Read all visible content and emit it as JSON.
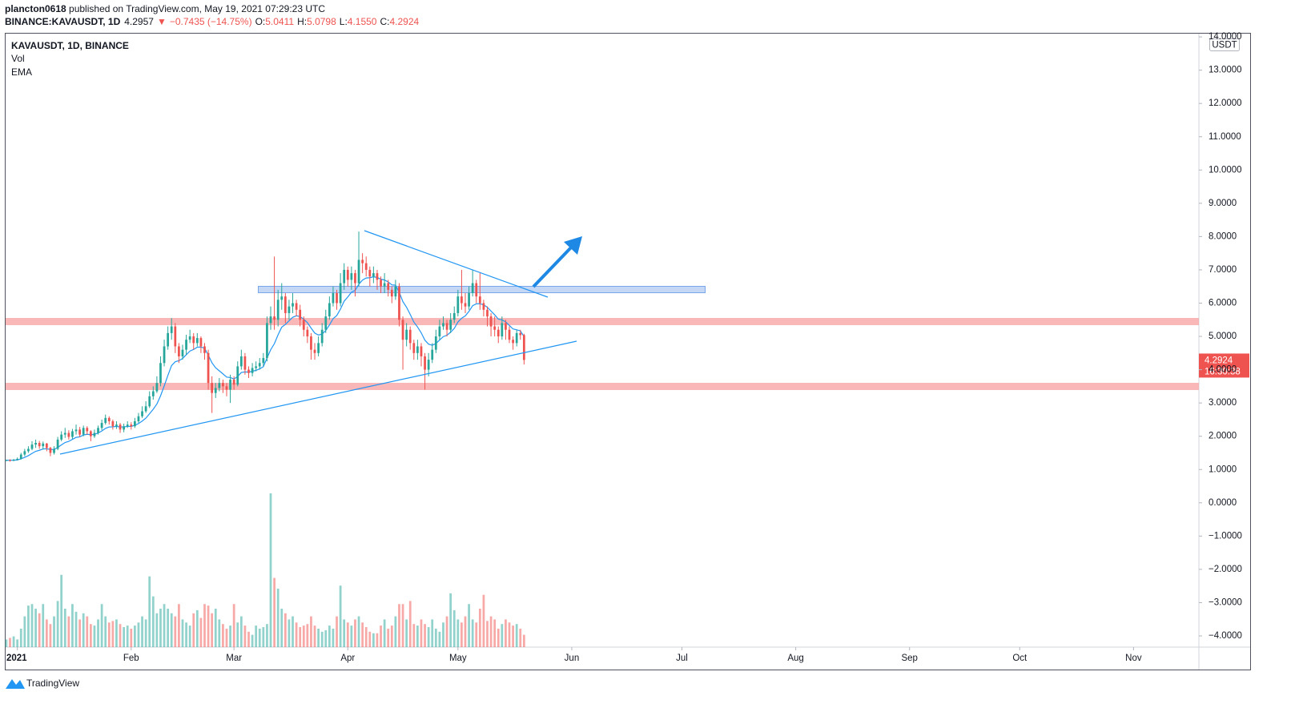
{
  "header": {
    "author": "plancton0618",
    "published": " published on TradingView.com, May 19, 2021 07:29:23 UTC",
    "symbol": "BINANCE:KAVAUSDT, 1D",
    "last": "4.2957",
    "arrow": "▼",
    "change": "−0.7435 (−14.75%)",
    "o_label": "O:",
    "o": "5.0411",
    "h_label": "H:",
    "h": "5.0798",
    "l_label": "L:",
    "l": "4.1550",
    "c_label": "C:",
    "c": "4.2924",
    "countdown": "16:30:38"
  },
  "legend": [
    "KAVAUSDT, 1D, BINANCE",
    "Vol",
    "EMA"
  ],
  "currency": "USDT",
  "footer": "TradingView",
  "chart_data": {
    "type": "candlestick",
    "up_color": "#26a69a",
    "down_color": "#ef5350",
    "ema_color": "#2196f3",
    "ylim": [
      14.05,
      -4.0
    ],
    "yticks": [
      {
        "value": 14,
        "label": "14.0000"
      },
      {
        "value": 13,
        "label": "13.0000"
      },
      {
        "value": 12,
        "label": "12.0000"
      },
      {
        "value": 11,
        "label": "11.0000"
      },
      {
        "value": 10,
        "label": "10.0000"
      },
      {
        "value": 9,
        "label": "9.0000"
      },
      {
        "value": 8,
        "label": "8.0000"
      },
      {
        "value": 7,
        "label": "7.0000"
      },
      {
        "value": 6,
        "label": "6.0000"
      },
      {
        "value": 5,
        "label": "5.0000"
      },
      {
        "value": 4,
        "label": "4.0000"
      },
      {
        "value": 3,
        "label": "3.0000"
      },
      {
        "value": 2,
        "label": "2.0000"
      },
      {
        "value": 1,
        "label": "1.0000"
      },
      {
        "value": 0,
        "label": "0.0000"
      },
      {
        "value": -1,
        "label": "−1.0000"
      },
      {
        "value": -2,
        "label": "−2.0000"
      },
      {
        "value": -3,
        "label": "−3.0000"
      },
      {
        "value": -4,
        "label": "−4.0000"
      }
    ],
    "xlim": [
      -0.2,
      324.8
    ],
    "xticks": [
      {
        "value": 3,
        "label": "2021"
      },
      {
        "value": 34,
        "label": "Feb"
      },
      {
        "value": 62,
        "label": "Mar"
      },
      {
        "value": 93,
        "label": "Apr"
      },
      {
        "value": 123,
        "label": "May"
      },
      {
        "value": 154,
        "label": "Jun"
      },
      {
        "value": 184,
        "label": "Jul"
      },
      {
        "value": 215,
        "label": "Aug"
      },
      {
        "value": 246,
        "label": "Sep"
      },
      {
        "value": 276,
        "label": "Oct"
      },
      {
        "value": 307,
        "label": "Nov"
      }
    ],
    "vlim": [
      0,
      100
    ],
    "candles": [
      [
        1.27,
        1.3,
        1.25,
        1.28
      ],
      [
        1.28,
        1.31,
        1.24,
        1.27
      ],
      [
        1.27,
        1.32,
        1.25,
        1.29
      ],
      [
        1.29,
        1.36,
        1.27,
        1.32
      ],
      [
        1.32,
        1.5,
        1.3,
        1.45
      ],
      [
        1.45,
        1.62,
        1.4,
        1.55
      ],
      [
        1.55,
        1.7,
        1.5,
        1.62
      ],
      [
        1.62,
        1.85,
        1.58,
        1.75
      ],
      [
        1.75,
        1.9,
        1.65,
        1.8
      ],
      [
        1.8,
        1.86,
        1.62,
        1.7
      ],
      [
        1.7,
        1.84,
        1.6,
        1.78
      ],
      [
        1.78,
        1.8,
        1.55,
        1.65
      ],
      [
        1.65,
        1.68,
        1.4,
        1.5
      ],
      [
        1.5,
        1.7,
        1.45,
        1.62
      ],
      [
        1.62,
        1.98,
        1.58,
        1.9
      ],
      [
        1.9,
        2.15,
        1.85,
        2.05
      ],
      [
        2.05,
        2.25,
        1.95,
        2.1
      ],
      [
        2.1,
        2.18,
        1.9,
        1.98
      ],
      [
        1.98,
        2.22,
        1.92,
        2.15
      ],
      [
        2.15,
        2.35,
        2.05,
        2.2
      ],
      [
        2.2,
        2.28,
        1.98,
        2.05
      ],
      [
        2.05,
        2.32,
        2.0,
        2.25
      ],
      [
        2.25,
        2.3,
        2.05,
        2.15
      ],
      [
        2.15,
        2.18,
        1.85,
        2.0
      ],
      [
        2.0,
        2.2,
        1.95,
        2.1
      ],
      [
        2.1,
        2.32,
        2.05,
        2.25
      ],
      [
        2.25,
        2.5,
        2.18,
        2.4
      ],
      [
        2.4,
        2.65,
        2.35,
        2.55
      ],
      [
        2.55,
        2.6,
        2.35,
        2.45
      ],
      [
        2.45,
        2.5,
        2.2,
        2.3
      ],
      [
        2.3,
        2.45,
        2.22,
        2.35
      ],
      [
        2.35,
        2.4,
        2.1,
        2.2
      ],
      [
        2.2,
        2.38,
        2.12,
        2.3
      ],
      [
        2.3,
        2.45,
        2.25,
        2.35
      ],
      [
        2.35,
        2.42,
        2.2,
        2.3
      ],
      [
        2.3,
        2.55,
        2.25,
        2.45
      ],
      [
        2.45,
        2.7,
        2.4,
        2.6
      ],
      [
        2.6,
        2.9,
        2.55,
        2.75
      ],
      [
        2.75,
        3.05,
        2.7,
        2.9
      ],
      [
        2.9,
        3.35,
        2.85,
        3.2
      ],
      [
        3.2,
        3.5,
        3.1,
        3.35
      ],
      [
        3.35,
        3.8,
        3.3,
        3.6
      ],
      [
        3.6,
        4.4,
        3.5,
        4.2
      ],
      [
        4.2,
        4.9,
        4.1,
        4.7
      ],
      [
        4.7,
        5.3,
        4.6,
        5.1
      ],
      [
        5.1,
        5.55,
        4.9,
        5.3
      ],
      [
        5.3,
        5.4,
        4.5,
        4.7
      ],
      [
        4.7,
        4.8,
        4.2,
        4.4
      ],
      [
        4.4,
        4.75,
        4.3,
        4.6
      ],
      [
        4.6,
        5.05,
        4.45,
        4.9
      ],
      [
        4.9,
        5.2,
        4.8,
        5.0
      ],
      [
        5.0,
        5.1,
        4.6,
        4.8
      ],
      [
        4.8,
        5.1,
        4.7,
        4.95
      ],
      [
        4.95,
        5.0,
        4.5,
        4.7
      ],
      [
        4.7,
        4.8,
        4.3,
        4.5
      ],
      [
        4.5,
        4.6,
        3.4,
        3.6
      ],
      [
        3.6,
        3.8,
        2.7,
        3.3
      ],
      [
        3.3,
        3.6,
        3.15,
        3.45
      ],
      [
        3.45,
        3.75,
        3.35,
        3.6
      ],
      [
        3.6,
        3.7,
        3.3,
        3.5
      ],
      [
        3.5,
        3.6,
        3.2,
        3.4
      ],
      [
        3.4,
        3.85,
        3.0,
        3.7
      ],
      [
        3.7,
        3.8,
        3.4,
        3.55
      ],
      [
        3.55,
        4.25,
        3.5,
        4.1
      ],
      [
        4.1,
        4.6,
        4.0,
        4.4
      ],
      [
        4.4,
        4.5,
        3.85,
        4.0
      ],
      [
        4.0,
        4.1,
        3.75,
        3.9
      ],
      [
        3.9,
        4.2,
        3.8,
        4.05
      ],
      [
        4.05,
        4.25,
        3.95,
        4.1
      ],
      [
        4.1,
        4.35,
        4.0,
        4.2
      ],
      [
        4.2,
        4.5,
        4.1,
        4.35
      ],
      [
        4.35,
        5.6,
        4.25,
        5.4
      ],
      [
        5.4,
        5.9,
        5.2,
        5.6
      ],
      [
        5.6,
        7.4,
        5.2,
        5.5
      ],
      [
        5.5,
        6.4,
        5.3,
        6.1
      ],
      [
        6.1,
        6.6,
        5.8,
        6.2
      ],
      [
        6.2,
        6.3,
        5.4,
        5.7
      ],
      [
        5.7,
        6.1,
        5.5,
        5.9
      ],
      [
        5.9,
        6.3,
        5.7,
        6.0
      ],
      [
        6.0,
        6.1,
        5.6,
        5.8
      ],
      [
        5.8,
        5.95,
        5.3,
        5.5
      ],
      [
        5.5,
        5.6,
        5.0,
        5.2
      ],
      [
        5.2,
        5.3,
        4.8,
        5.0
      ],
      [
        5.0,
        5.1,
        4.3,
        4.6
      ],
      [
        4.6,
        4.8,
        4.3,
        4.5
      ],
      [
        4.5,
        5.0,
        4.4,
        4.8
      ],
      [
        4.8,
        5.4,
        4.7,
        5.2
      ],
      [
        5.2,
        5.8,
        5.1,
        5.6
      ],
      [
        5.6,
        6.2,
        5.5,
        6.0
      ],
      [
        6.0,
        6.5,
        5.9,
        6.3
      ],
      [
        6.3,
        6.4,
        5.8,
        6.0
      ],
      [
        6.0,
        6.9,
        5.9,
        6.6
      ],
      [
        6.6,
        7.2,
        6.4,
        7.0
      ],
      [
        7.0,
        7.1,
        6.5,
        6.7
      ],
      [
        6.7,
        7.1,
        6.4,
        6.9
      ],
      [
        6.9,
        7.0,
        6.2,
        6.6
      ],
      [
        6.6,
        8.15,
        6.5,
        7.3
      ],
      [
        7.3,
        7.5,
        6.9,
        7.2
      ],
      [
        7.2,
        7.4,
        6.8,
        7.0
      ],
      [
        7.0,
        7.1,
        6.5,
        6.8
      ],
      [
        6.8,
        7.1,
        6.6,
        6.9
      ],
      [
        6.9,
        7.0,
        6.4,
        6.7
      ],
      [
        6.7,
        6.8,
        6.3,
        6.5
      ],
      [
        6.5,
        6.9,
        6.3,
        6.6
      ],
      [
        6.6,
        6.7,
        6.2,
        6.4
      ],
      [
        6.4,
        6.5,
        6.0,
        6.2
      ],
      [
        6.2,
        6.7,
        6.1,
        6.5
      ],
      [
        6.5,
        6.6,
        5.3,
        5.5
      ],
      [
        5.5,
        5.6,
        4.0,
        4.9
      ],
      [
        4.9,
        5.4,
        4.7,
        5.2
      ],
      [
        5.2,
        5.3,
        4.6,
        4.8
      ],
      [
        4.8,
        4.9,
        4.3,
        4.5
      ],
      [
        4.5,
        4.9,
        4.3,
        4.7
      ],
      [
        4.7,
        4.8,
        4.1,
        4.4
      ],
      [
        4.4,
        4.5,
        3.4,
        4.0
      ],
      [
        4.0,
        4.5,
        3.8,
        4.3
      ],
      [
        4.3,
        4.8,
        4.2,
        4.6
      ],
      [
        4.6,
        5.2,
        4.5,
        5.0
      ],
      [
        5.0,
        5.5,
        4.9,
        5.3
      ],
      [
        5.3,
        5.6,
        5.2,
        5.4
      ],
      [
        5.4,
        5.5,
        5.0,
        5.2
      ],
      [
        5.2,
        5.7,
        5.1,
        5.5
      ],
      [
        5.5,
        5.9,
        5.4,
        5.7
      ],
      [
        5.7,
        6.4,
        5.6,
        6.2
      ],
      [
        6.2,
        7.0,
        5.8,
        6.0
      ],
      [
        6.0,
        6.3,
        5.7,
        5.9
      ],
      [
        5.9,
        6.5,
        5.8,
        6.3
      ],
      [
        6.3,
        7.0,
        6.2,
        6.6
      ],
      [
        6.6,
        6.7,
        6.0,
        6.2
      ],
      [
        6.2,
        6.9,
        5.8,
        6.0
      ],
      [
        6.0,
        6.1,
        5.6,
        5.8
      ],
      [
        5.8,
        5.9,
        5.3,
        5.6
      ],
      [
        5.6,
        5.7,
        5.0,
        5.3
      ],
      [
        5.3,
        5.6,
        5.0,
        5.2
      ],
      [
        5.2,
        5.3,
        4.8,
        5.0
      ],
      [
        5.0,
        5.6,
        4.9,
        5.4
      ],
      [
        5.4,
        5.5,
        4.9,
        5.2
      ],
      [
        5.2,
        5.3,
        4.8,
        4.9
      ],
      [
        4.9,
        5.0,
        4.6,
        4.8
      ],
      [
        4.8,
        5.2,
        4.7,
        5.1
      ],
      [
        5.1,
        5.2,
        4.9,
        5.04
      ],
      [
        5.0411,
        5.0798,
        4.155,
        4.2924
      ]
    ],
    "volume": [
      5,
      6,
      7,
      5,
      12,
      20,
      27,
      28,
      25,
      22,
      28,
      18,
      15,
      20,
      30,
      47,
      25,
      20,
      28,
      23,
      18,
      22,
      20,
      15,
      14,
      18,
      28,
      20,
      16,
      17,
      18,
      15,
      13,
      14,
      12,
      14,
      16,
      20,
      18,
      46,
      33,
      22,
      25,
      28,
      25,
      22,
      20,
      28,
      18,
      16,
      14,
      22,
      24,
      19,
      28,
      27,
      22,
      25,
      18,
      15,
      12,
      14,
      28,
      16,
      20,
      14,
      10,
      8,
      14,
      12,
      13,
      15,
      100,
      45,
      38,
      25,
      22,
      18,
      20,
      16,
      13,
      14,
      15,
      20,
      14,
      12,
      10,
      11,
      14,
      12,
      20,
      40,
      18,
      16,
      14,
      18,
      20,
      16,
      13,
      10,
      9,
      9,
      14,
      18,
      12,
      14,
      20,
      28,
      28,
      18,
      30,
      15,
      14,
      18,
      15,
      13,
      18,
      12,
      10,
      16,
      20,
      35,
      24,
      18,
      16,
      20,
      28,
      18,
      16,
      25,
      34,
      17,
      20,
      18,
      12,
      15,
      18,
      16,
      14,
      15,
      12,
      8
    ]
  }
}
